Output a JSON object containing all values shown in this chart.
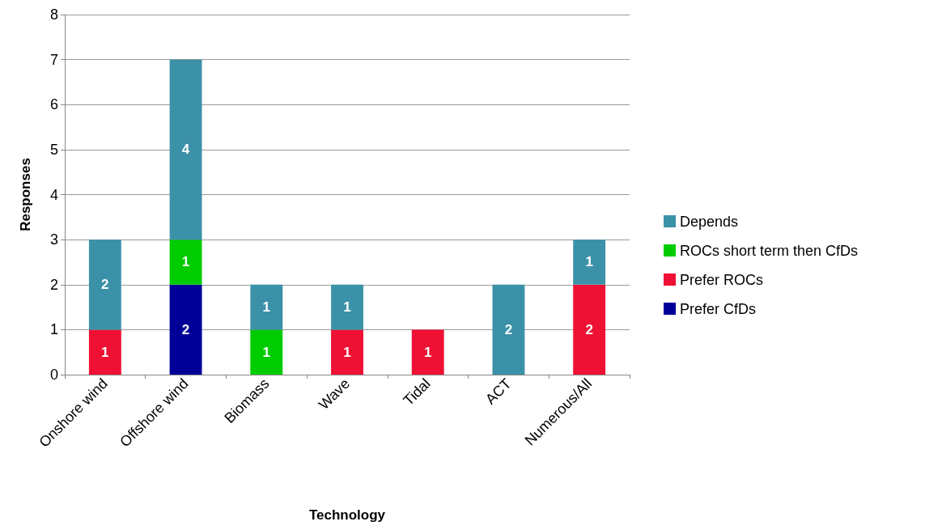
{
  "chart_data": {
    "type": "bar",
    "stacked": true,
    "xlabel": "Technology",
    "ylabel": "Responses",
    "categories": [
      "Onshore wind",
      "Offshore wind",
      "Biomass",
      "Wave",
      "Tidal",
      "ACT",
      "Numerous/All"
    ],
    "series": [
      {
        "name": "Prefer CfDs",
        "color": "#000099",
        "values": [
          null,
          2,
          null,
          null,
          null,
          null,
          null
        ]
      },
      {
        "name": "Prefer ROCs",
        "color": "#ee1133",
        "values": [
          1,
          null,
          null,
          1,
          1,
          null,
          2
        ]
      },
      {
        "name": "ROCs short term then CfDs",
        "color": "#00cc00",
        "values": [
          null,
          1,
          1,
          null,
          null,
          null,
          null
        ]
      },
      {
        "name": "Depends",
        "color": "#3b92a8",
        "values": [
          2,
          4,
          1,
          1,
          null,
          2,
          1
        ]
      }
    ],
    "ylim": [
      0,
      8
    ],
    "yticks": [
      0,
      1,
      2,
      3,
      4,
      5,
      6,
      7,
      8
    ],
    "grid": "y",
    "legend": "right",
    "data_labels": true
  }
}
